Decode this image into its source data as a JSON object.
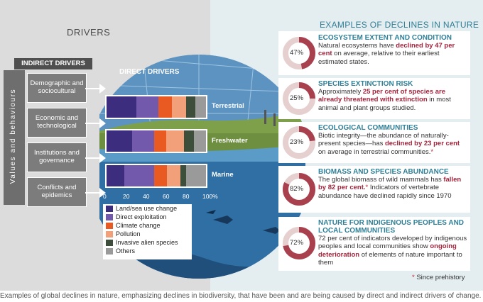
{
  "drivers_title": "DRIVERS",
  "examples_title": "EXAMPLES OF DECLINES IN NATURE",
  "indirect": {
    "header": "INDIRECT DRIVERS",
    "side_label": "Values and behaviours",
    "boxes": [
      {
        "label": "Demographic and sociocultural"
      },
      {
        "label": "Economic and technological"
      },
      {
        "label": "Institutions and governance"
      },
      {
        "label": "Conflicts and epidemics"
      }
    ]
  },
  "direct": {
    "header": "DIRECT DRIVERS",
    "env_labels": [
      "Terrestrial",
      "Freshwater",
      "Marine"
    ]
  },
  "chart_data": {
    "type": "bar",
    "orientation": "horizontal-stacked",
    "title": "DIRECT DRIVERS",
    "categories": [
      "Terrestrial",
      "Freshwater",
      "Marine"
    ],
    "xlim": [
      0,
      100
    ],
    "x_ticks": [
      "0",
      "20",
      "40",
      "60",
      "80",
      "100%"
    ],
    "series": [
      {
        "name": "Land/sea use change",
        "color": "#3c2d7e",
        "values": [
          30,
          26,
          18
        ]
      },
      {
        "name": "Direct exploitation",
        "color": "#7259ab",
        "values": [
          22,
          22,
          30
        ]
      },
      {
        "name": "Climate change",
        "color": "#e85a22",
        "values": [
          14,
          12,
          13
        ]
      },
      {
        "name": "Pollution",
        "color": "#f1a079",
        "values": [
          14,
          18,
          13
        ]
      },
      {
        "name": "Invasive alien species",
        "color": "#3d4f3a",
        "values": [
          9,
          10,
          6
        ]
      },
      {
        "name": "Others",
        "color": "#9a9a9a",
        "values": [
          11,
          12,
          20
        ]
      }
    ]
  },
  "cards": [
    {
      "percent": "47%",
      "value": 47,
      "title": "ECOSYSTEM EXTENT AND CONDITION",
      "t1": "Natural ecosystems have ",
      "h1": "declined by 47 per cent",
      "t2": " on average, relative to their earliest estimated states.",
      "h2": "",
      "t3": "",
      "star": ""
    },
    {
      "percent": "25%",
      "value": 25,
      "title": "SPECIES EXTINCTION RISK",
      "t1": "Approximately ",
      "h1": "25 per cent of species are already threatened with extinction",
      "t2": " in most animal and plant groups studied.",
      "h2": "",
      "t3": "",
      "star": ""
    },
    {
      "percent": "23%",
      "value": 23,
      "title": "ECOLOGICAL COMMUNITIES",
      "t1": "Biotic integrity—the abundance of naturally-present species—has ",
      "h1": "declined by 23 per cent",
      "t2": " on average in terrestrial communities.",
      "h2": "",
      "t3": "",
      "star": "*"
    },
    {
      "percent": "82%",
      "value": 82,
      "title": "BIOMASS AND SPECIES ABUNDANCE",
      "t1": "The global biomass of wild mammals has ",
      "h1": "fallen by 82 per cent.",
      "t2": "",
      "h2": "",
      "t3": " Indicators of vertebrate abundance have declined rapidly since 1970",
      "star": "*"
    },
    {
      "percent": "72%",
      "value": 72,
      "title": "NATURE FOR INDIGENOUS PEOPLES AND LOCAL COMMUNITIES",
      "t1": "72 per cent of indicators developed by indigenous peoples and local communities show ",
      "h1": "ongoing deterioration",
      "t2": " of elements of nature important to them",
      "h2": "",
      "t3": "",
      "star": ""
    }
  ],
  "footnote": {
    "star": "*",
    "text": " Since prehistory"
  },
  "caption": "Examples of global declines in nature, emphasizing declines in biodiversity, that have been and are being caused by direct and indirect drivers of change.",
  "colors": {
    "accent_title": "#2f7f97",
    "highlight": "#a3233b",
    "donut": "#a8404e",
    "donut_bg": "#e6cfcf"
  }
}
